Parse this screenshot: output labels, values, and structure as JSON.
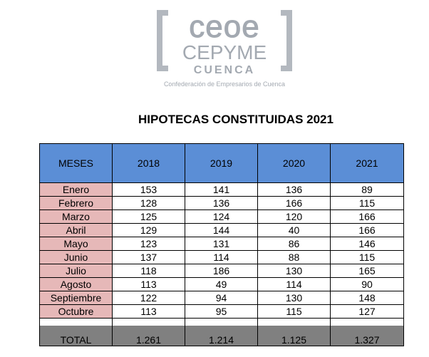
{
  "logo": {
    "line1": "ceoe",
    "line2": "CEPYME",
    "line3": "CUENCA",
    "line4": "Confederación de Empresarios de Cuenca"
  },
  "title": "HIPOTECAS CONSTITUIDAS 2021",
  "table": {
    "headers": [
      "MESES",
      "2018",
      "2019",
      "2020",
      "2021"
    ],
    "rows": [
      [
        "Enero",
        "153",
        "141",
        "136",
        "89"
      ],
      [
        "Febrero",
        "128",
        "136",
        "166",
        "115"
      ],
      [
        "Marzo",
        "125",
        "124",
        "120",
        "166"
      ],
      [
        "Abril",
        "129",
        "144",
        "40",
        "166"
      ],
      [
        "Mayo",
        "123",
        "131",
        "86",
        "146"
      ],
      [
        "Junio",
        "137",
        "114",
        "88",
        "115"
      ],
      [
        "Julio",
        "118",
        "186",
        "130",
        "165"
      ],
      [
        "Agosto",
        "113",
        "49",
        "114",
        "90"
      ],
      [
        "Septiembre",
        "122",
        "94",
        "130",
        "148"
      ],
      [
        "Octubre",
        "113",
        "95",
        "115",
        "127"
      ]
    ],
    "total": [
      "TOTAL",
      "1.261",
      "1.214",
      "1.125",
      "1.327"
    ]
  },
  "colors": {
    "header_bg": "#5b8ed6",
    "month_bg": "#e6b8b8",
    "total_bg": "#808080",
    "logo_gray": "#a3a9b1"
  }
}
